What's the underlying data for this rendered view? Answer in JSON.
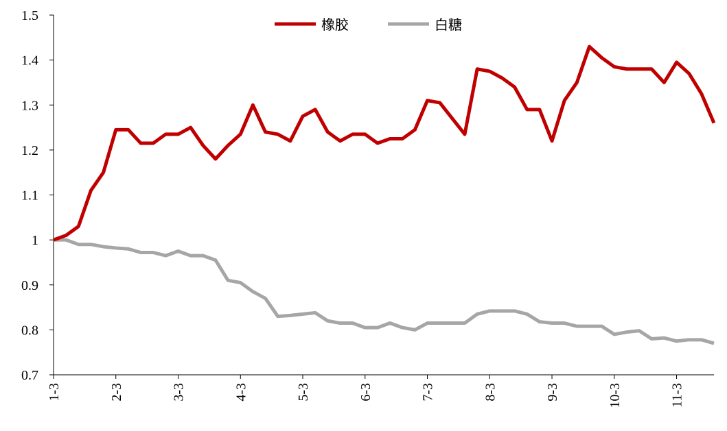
{
  "chart_data": {
    "type": "line",
    "categories": [
      "1-3",
      null,
      null,
      null,
      null,
      "2-3",
      null,
      null,
      null,
      null,
      "3-3",
      null,
      null,
      null,
      null,
      "4-3",
      null,
      null,
      null,
      null,
      "5-3",
      null,
      null,
      null,
      null,
      "6-3",
      null,
      null,
      null,
      null,
      "7-3",
      null,
      null,
      null,
      null,
      "8-3",
      null,
      null,
      null,
      null,
      "9-3",
      null,
      null,
      null,
      null,
      "10-3",
      null,
      null,
      null,
      null,
      "11-3",
      null,
      null,
      null
    ],
    "series": [
      {
        "name": "橡胶",
        "color": "#c00000",
        "values": [
          1.0,
          1.01,
          1.03,
          1.11,
          1.15,
          1.245,
          1.245,
          1.215,
          1.215,
          1.235,
          1.235,
          1.25,
          1.21,
          1.18,
          1.21,
          1.235,
          1.3,
          1.24,
          1.235,
          1.22,
          1.275,
          1.29,
          1.24,
          1.22,
          1.235,
          1.235,
          1.215,
          1.225,
          1.225,
          1.245,
          1.31,
          1.305,
          1.27,
          1.235,
          1.38,
          1.375,
          1.36,
          1.34,
          1.29,
          1.29,
          1.22,
          1.31,
          1.35,
          1.43,
          1.405,
          1.385,
          1.38,
          1.38,
          1.38,
          1.35,
          1.395,
          1.37,
          1.325,
          1.26
        ]
      },
      {
        "name": "白糖",
        "color": "#a6a6a6",
        "values": [
          1.0,
          1.0,
          0.99,
          0.99,
          0.985,
          0.982,
          0.98,
          0.972,
          0.972,
          0.965,
          0.975,
          0.965,
          0.965,
          0.955,
          0.91,
          0.905,
          0.885,
          0.87,
          0.83,
          0.832,
          0.835,
          0.838,
          0.82,
          0.815,
          0.815,
          0.805,
          0.805,
          0.815,
          0.805,
          0.8,
          0.815,
          0.815,
          0.815,
          0.815,
          0.835,
          0.842,
          0.842,
          0.842,
          0.835,
          0.818,
          0.815,
          0.815,
          0.808,
          0.808,
          0.808,
          0.79,
          0.795,
          0.798,
          0.78,
          0.782,
          0.775,
          0.778,
          0.778,
          0.77
        ]
      }
    ],
    "ylim": [
      0.7,
      1.5
    ],
    "yticks": [
      0.7,
      0.8,
      0.9,
      1,
      1.1,
      1.2,
      1.3,
      1.4,
      1.5
    ],
    "legend": "top"
  }
}
